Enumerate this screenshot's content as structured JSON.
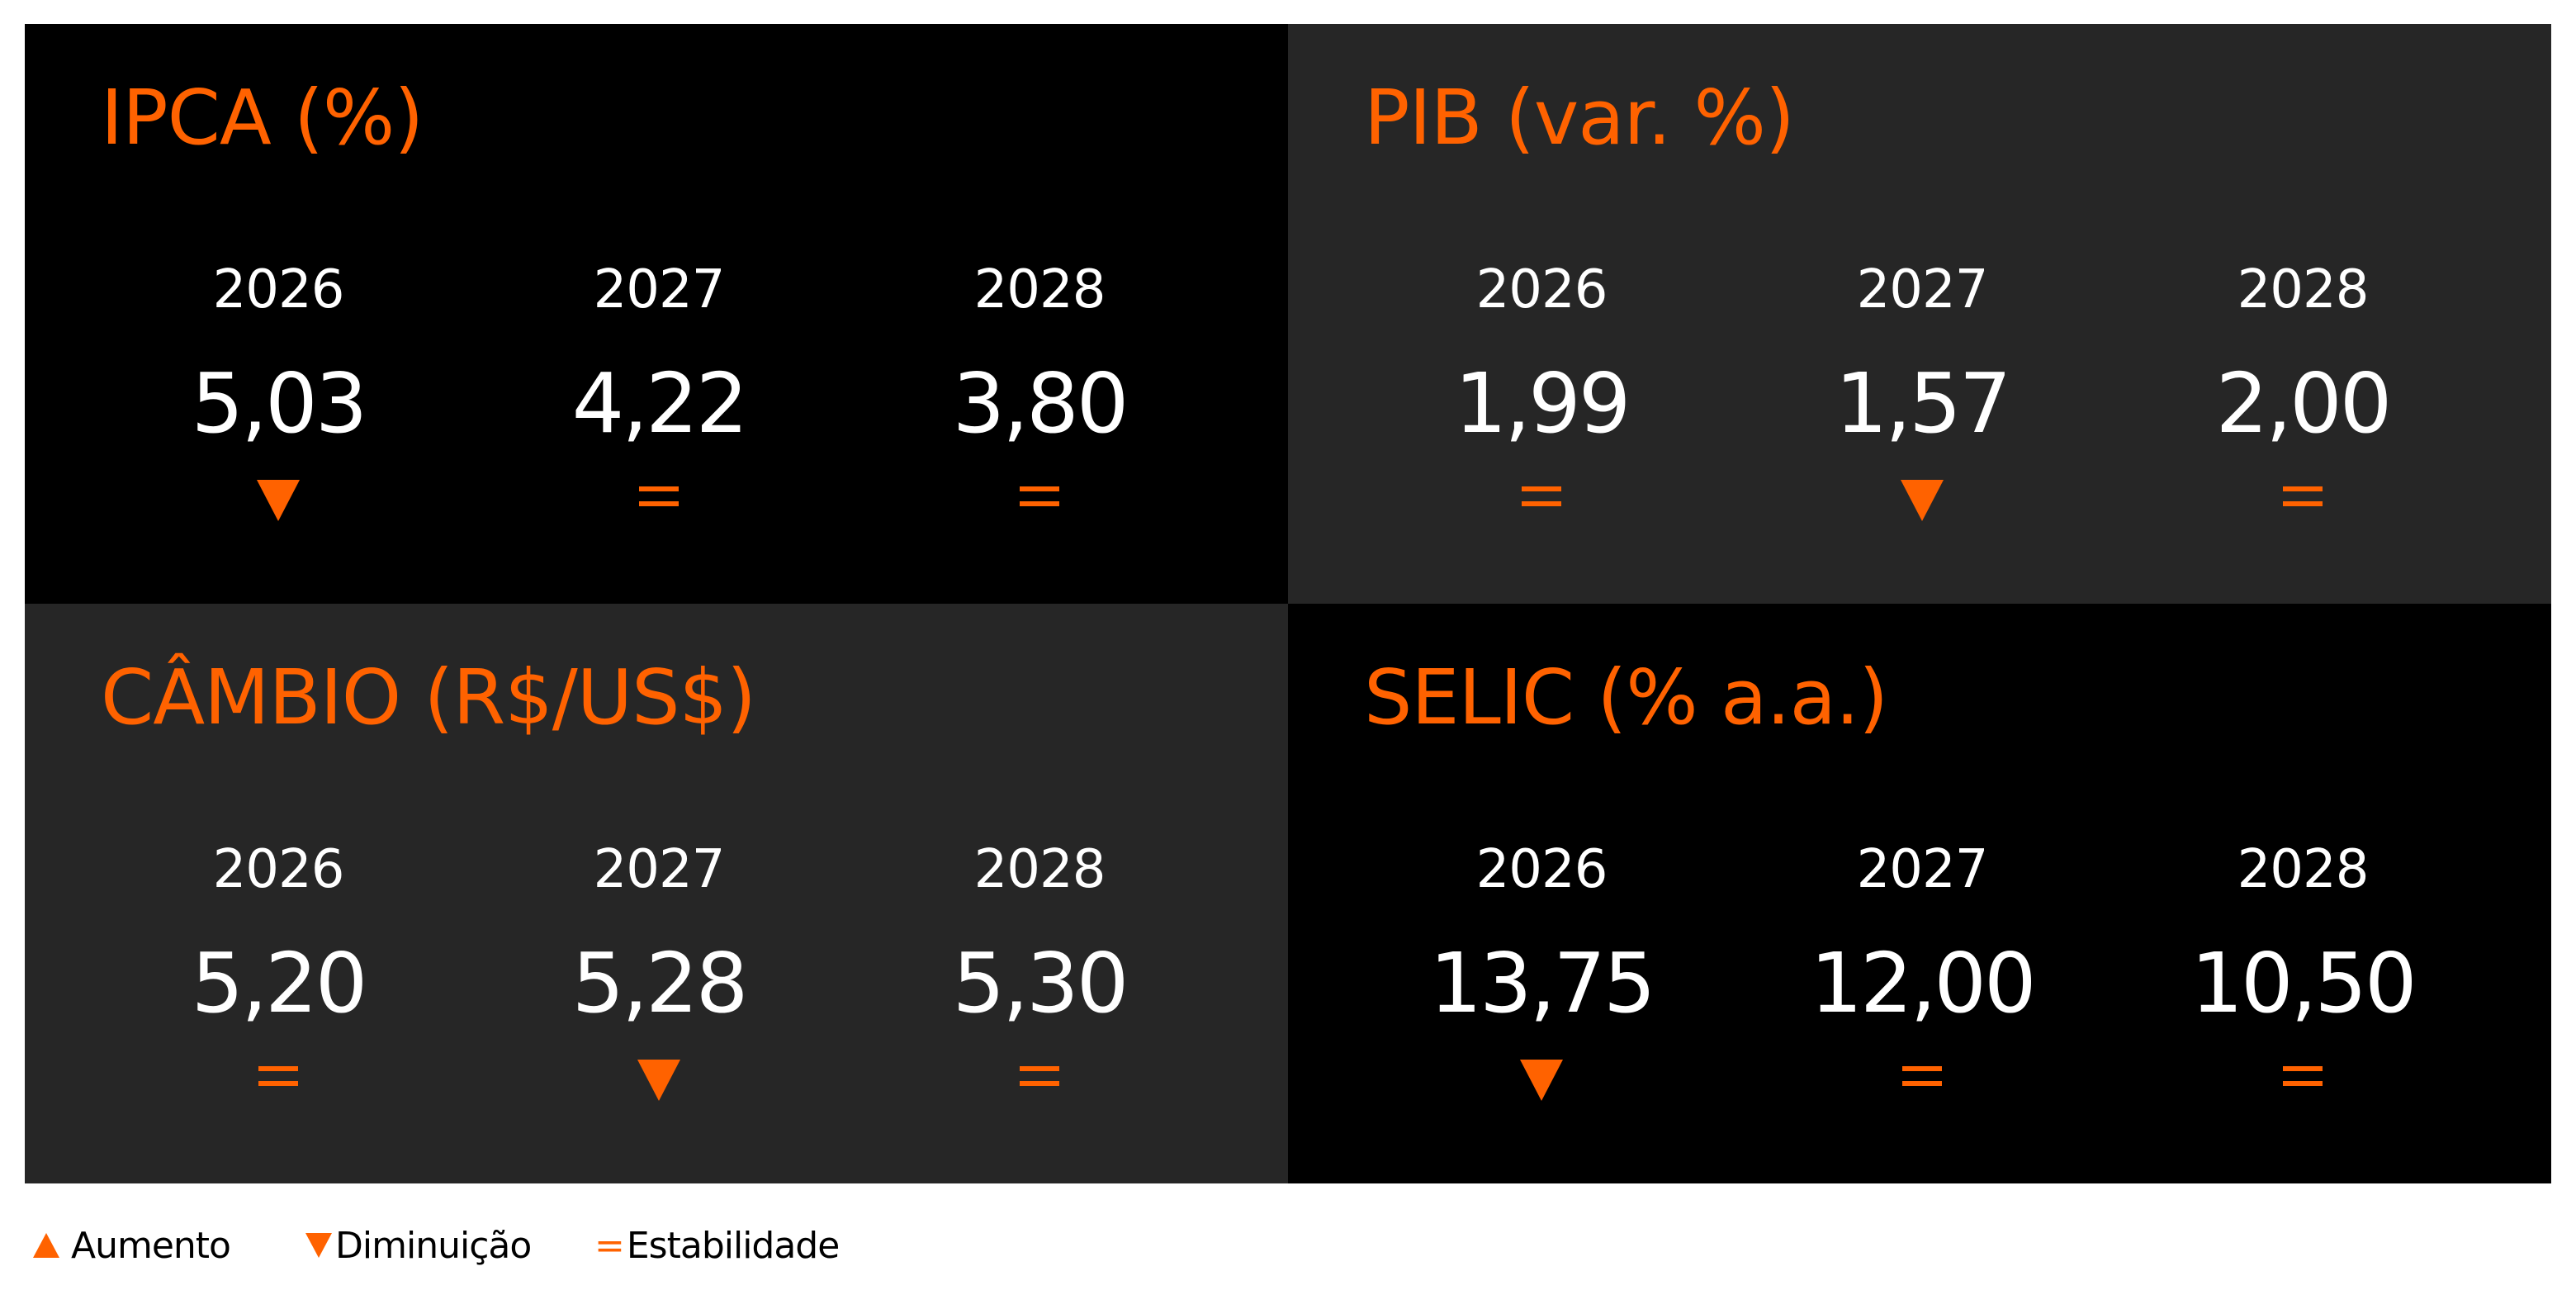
{
  "colors": {
    "accent": "#ff6200",
    "panel_dark": "#000000",
    "panel_gray": "#262626",
    "text": "#ffffff"
  },
  "panels": [
    {
      "title": "IPCA (%)",
      "theme": "dark",
      "items": [
        {
          "year": "2026",
          "value": "5,03",
          "trend": "down"
        },
        {
          "year": "2027",
          "value": "4,22",
          "trend": "equal"
        },
        {
          "year": "2028",
          "value": "3,80",
          "trend": "equal"
        }
      ]
    },
    {
      "title": "PIB (var. %)",
      "theme": "gray",
      "items": [
        {
          "year": "2026",
          "value": "1,99",
          "trend": "equal"
        },
        {
          "year": "2027",
          "value": "1,57",
          "trend": "down"
        },
        {
          "year": "2028",
          "value": "2,00",
          "trend": "equal"
        }
      ]
    },
    {
      "title": "CÂMBIO (R$/US$)",
      "theme": "gray",
      "items": [
        {
          "year": "2026",
          "value": "5,20",
          "trend": "equal"
        },
        {
          "year": "2027",
          "value": "5,28",
          "trend": "down"
        },
        {
          "year": "2028",
          "value": "5,30",
          "trend": "equal"
        }
      ]
    },
    {
      "title": "SELIC (% a.a.)",
      "theme": "dark",
      "items": [
        {
          "year": "2026",
          "value": "13,75",
          "trend": "down"
        },
        {
          "year": "2027",
          "value": "12,00",
          "trend": "equal"
        },
        {
          "year": "2028",
          "value": "10,50",
          "trend": "equal"
        }
      ]
    }
  ],
  "legend": {
    "increase_label": "Aumento",
    "decrease_label": "Diminuição",
    "equal_symbol": "=",
    "stable_label": "Estabilidade"
  }
}
